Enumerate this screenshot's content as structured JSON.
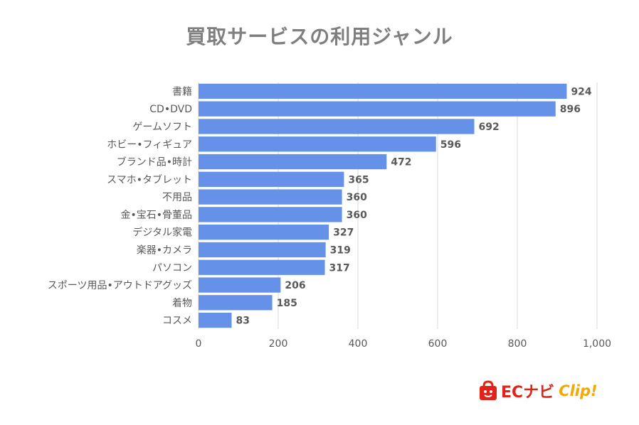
{
  "chart_data": {
    "type": "bar",
    "orientation": "horizontal",
    "title": "買取サービスの利用ジャンル",
    "categories": [
      "書籍",
      "CD•DVD",
      "ゲームソフト",
      "ホビー•フィギュア",
      "ブランド品•時計",
      "スマホ•タブレット",
      "不用品",
      "金•宝石•骨董品",
      "デジタル家電",
      "楽器•カメラ",
      "パソコン",
      "スポーツ用品•アウトドアグッズ",
      "着物",
      "コスメ"
    ],
    "values": [
      924,
      896,
      692,
      596,
      472,
      365,
      360,
      360,
      327,
      319,
      317,
      206,
      185,
      83
    ],
    "xlim": [
      0,
      1000
    ],
    "xticks": [
      "0",
      "200",
      "400",
      "600",
      "800",
      "1,000"
    ],
    "xtick_values": [
      0,
      200,
      400,
      600,
      800,
      1000
    ],
    "grid": "vertical",
    "legend": "none",
    "bar_color": "#6592e8"
  },
  "logo": {
    "brand": "ECナビ",
    "suffix": "Clip!"
  },
  "colors": {
    "title": "#7f7f7f",
    "text": "#595959",
    "grid": "#d9d9d9",
    "logo_red": "#e2231a",
    "logo_yellow": "#f5a800"
  }
}
